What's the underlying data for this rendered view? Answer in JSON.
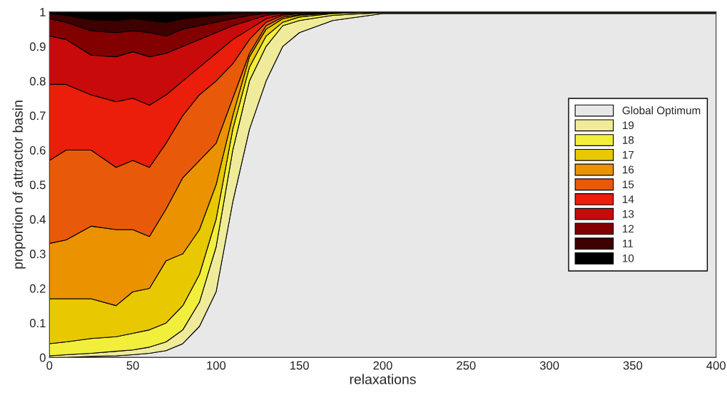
{
  "chart_data": {
    "type": "area",
    "stacked": true,
    "xlabel": "relaxations",
    "ylabel": "proportion of attractor basin",
    "x": [
      0,
      10,
      25,
      40,
      50,
      60,
      70,
      80,
      90,
      100,
      110,
      120,
      130,
      140,
      150,
      170,
      200,
      300,
      400
    ],
    "series": [
      {
        "name": "Global Optimum",
        "color": "#e8e8e8",
        "values": [
          0,
          0,
          0.003,
          0.005,
          0.008,
          0.012,
          0.02,
          0.04,
          0.09,
          0.19,
          0.45,
          0.66,
          0.8,
          0.9,
          0.94,
          0.975,
          0.995,
          0.995,
          0.995
        ]
      },
      {
        "name": "19",
        "color": "#f0eb9a",
        "values": [
          0.005,
          0.008,
          0.009,
          0.013,
          0.014,
          0.018,
          0.025,
          0.04,
          0.07,
          0.13,
          0.15,
          0.14,
          0.1,
          0.06,
          0.035,
          0.015,
          0.003,
          0.003,
          0.003
        ]
      },
      {
        "name": "18",
        "color": "#f2ee3c",
        "values": [
          0.035,
          0.037,
          0.043,
          0.042,
          0.048,
          0.05,
          0.055,
          0.07,
          0.08,
          0.08,
          0.06,
          0.04,
          0.03,
          0.01,
          0.01,
          0.005,
          0.002,
          0.002,
          0.002
        ]
      },
      {
        "name": "17",
        "color": "#e8c800",
        "values": [
          0.13,
          0.125,
          0.115,
          0.09,
          0.12,
          0.12,
          0.18,
          0.15,
          0.13,
          0.1,
          0.04,
          0.03,
          0.02,
          0.01,
          0.005,
          0.002,
          0,
          0,
          0
        ]
      },
      {
        "name": "16",
        "color": "#eb9200",
        "values": [
          0.16,
          0.17,
          0.21,
          0.22,
          0.18,
          0.15,
          0.15,
          0.22,
          0.2,
          0.12,
          0.05,
          0.01,
          0.01,
          0.005,
          0.002,
          0.001,
          0,
          0,
          0
        ]
      },
      {
        "name": "15",
        "color": "#e85a0a",
        "values": [
          0.24,
          0.26,
          0.22,
          0.18,
          0.2,
          0.2,
          0.19,
          0.18,
          0.19,
          0.18,
          0.1,
          0.04,
          0.01,
          0.005,
          0.003,
          0.001,
          0,
          0,
          0
        ]
      },
      {
        "name": "14",
        "color": "#ea1e0a",
        "values": [
          0.22,
          0.19,
          0.16,
          0.19,
          0.18,
          0.18,
          0.14,
          0.1,
          0.08,
          0.08,
          0.07,
          0.03,
          0.01,
          0.003,
          0.002,
          0.001,
          0,
          0,
          0
        ]
      },
      {
        "name": "13",
        "color": "#c80a0a",
        "values": [
          0.14,
          0.13,
          0.115,
          0.13,
          0.135,
          0.14,
          0.12,
          0.1,
          0.08,
          0.06,
          0.04,
          0.025,
          0.01,
          0.003,
          0.001,
          0,
          0,
          0,
          0
        ]
      },
      {
        "name": "12",
        "color": "#820000",
        "values": [
          0.05,
          0.05,
          0.07,
          0.07,
          0.06,
          0.07,
          0.05,
          0.05,
          0.04,
          0.03,
          0.02,
          0.015,
          0.005,
          0.002,
          0.001,
          0,
          0,
          0,
          0
        ]
      },
      {
        "name": "11",
        "color": "#3e0000",
        "values": [
          0.015,
          0.02,
          0.032,
          0.035,
          0.035,
          0.035,
          0.04,
          0.03,
          0.025,
          0.02,
          0.015,
          0.007,
          0.003,
          0.001,
          0.001,
          0,
          0,
          0,
          0
        ]
      },
      {
        "name": "10",
        "color": "#000000",
        "values": [
          0.005,
          0.01,
          0.023,
          0.025,
          0.02,
          0.025,
          0.03,
          0.02,
          0.015,
          0.01,
          0.005,
          0.003,
          0.002,
          0.001,
          0,
          0,
          0,
          0,
          0
        ]
      }
    ],
    "xlim": [
      0,
      400
    ],
    "xticks": [
      0,
      50,
      100,
      150,
      200,
      250,
      300,
      350,
      400
    ],
    "ylim": [
      0,
      1
    ],
    "yticks": [
      0,
      0.1,
      0.2,
      0.3,
      0.4,
      0.5,
      0.6,
      0.7,
      0.8,
      0.9,
      1
    ],
    "legend": "right"
  }
}
